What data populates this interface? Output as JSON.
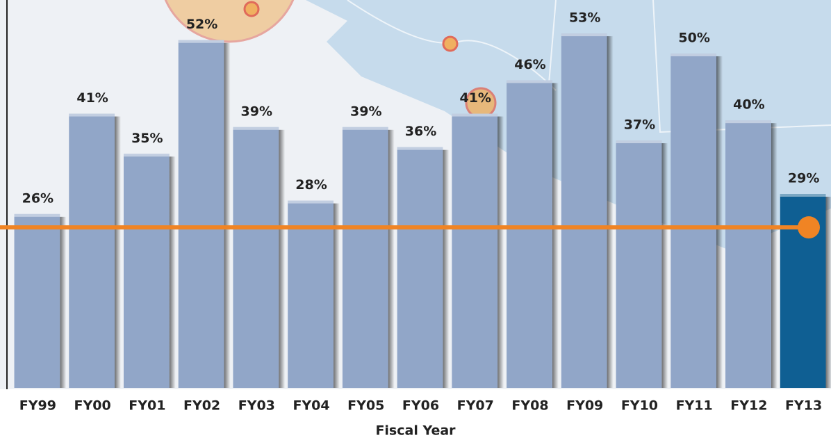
{
  "chart_data": {
    "type": "bar",
    "x_label": "Fiscal Year",
    "categories": [
      "FY99",
      "FY00",
      "FY01",
      "FY02",
      "FY03",
      "FY04",
      "FY05",
      "FY06",
      "FY07",
      "FY08",
      "FY09",
      "FY10",
      "FY11",
      "FY12",
      "FY13"
    ],
    "values": [
      26,
      41,
      35,
      52,
      39,
      28,
      39,
      36,
      41,
      46,
      53,
      37,
      50,
      40,
      29
    ],
    "value_labels": [
      "26%",
      "41%",
      "35%",
      "52%",
      "39%",
      "28%",
      "39%",
      "36%",
      "41%",
      "46%",
      "53%",
      "37%",
      "50%",
      "40%",
      "29%"
    ],
    "colors": [
      "#91a6c8",
      "#91a6c8",
      "#91a6c8",
      "#91a6c8",
      "#91a6c8",
      "#91a6c8",
      "#91a6c8",
      "#91a6c8",
      "#91a6c8",
      "#91a6c8",
      "#91a6c8",
      "#91a6c8",
      "#91a6c8",
      "#91a6c8",
      "#0f5f93"
    ],
    "ylim": [
      0,
      58
    ],
    "reference_line": {
      "value": 24,
      "color": "#f08424"
    }
  }
}
